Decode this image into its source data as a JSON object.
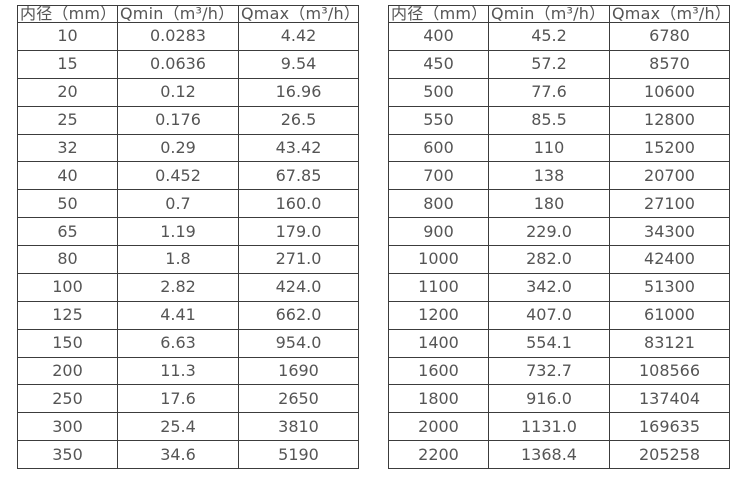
{
  "page": {
    "background": "#ffffff",
    "text_color": "#555555",
    "border_color": "#3c3c3c"
  },
  "tables": [
    {
      "name": "small-diameter-flow-table",
      "headers": [
        "内径（mm）",
        "Qmin（m³/h）",
        "Qmax（m³/h）"
      ],
      "rows": [
        [
          "10",
          "0.0283",
          "4.42"
        ],
        [
          "15",
          "0.0636",
          "9.54"
        ],
        [
          "20",
          "0.12",
          "16.96"
        ],
        [
          "25",
          "0.176",
          "26.5"
        ],
        [
          "32",
          "0.29",
          "43.42"
        ],
        [
          "40",
          "0.452",
          "67.85"
        ],
        [
          "50",
          "0.7",
          "160.0"
        ],
        [
          "65",
          "1.19",
          "179.0"
        ],
        [
          "80",
          "1.8",
          "271.0"
        ],
        [
          "100",
          "2.82",
          "424.0"
        ],
        [
          "125",
          "4.41",
          "662.0"
        ],
        [
          "150",
          "6.63",
          "954.0"
        ],
        [
          "200",
          "11.3",
          "1690"
        ],
        [
          "250",
          "17.6",
          "2650"
        ],
        [
          "300",
          "25.4",
          "3810"
        ],
        [
          "350",
          "34.6",
          "5190"
        ]
      ]
    },
    {
      "name": "large-diameter-flow-table",
      "headers": [
        "内径（mm）",
        "Qmin（m³/h）",
        "Qmax（m³/h）"
      ],
      "rows": [
        [
          "400",
          "45.2",
          "6780"
        ],
        [
          "450",
          "57.2",
          "8570"
        ],
        [
          "500",
          "77.6",
          "10600"
        ],
        [
          "550",
          "85.5",
          "12800"
        ],
        [
          "600",
          "110",
          "15200"
        ],
        [
          "700",
          "138",
          "20700"
        ],
        [
          "800",
          "180",
          "27100"
        ],
        [
          "900",
          "229.0",
          "34300"
        ],
        [
          "1000",
          "282.0",
          "42400"
        ],
        [
          "1100",
          "342.0",
          "51300"
        ],
        [
          "1200",
          "407.0",
          "61000"
        ],
        [
          "1400",
          "554.1",
          "83121"
        ],
        [
          "1600",
          "732.7",
          "108566"
        ],
        [
          "1800",
          "916.0",
          "137404"
        ],
        [
          "2000",
          "1131.0",
          "169635"
        ],
        [
          "2200",
          "1368.4",
          "205258"
        ]
      ]
    }
  ]
}
